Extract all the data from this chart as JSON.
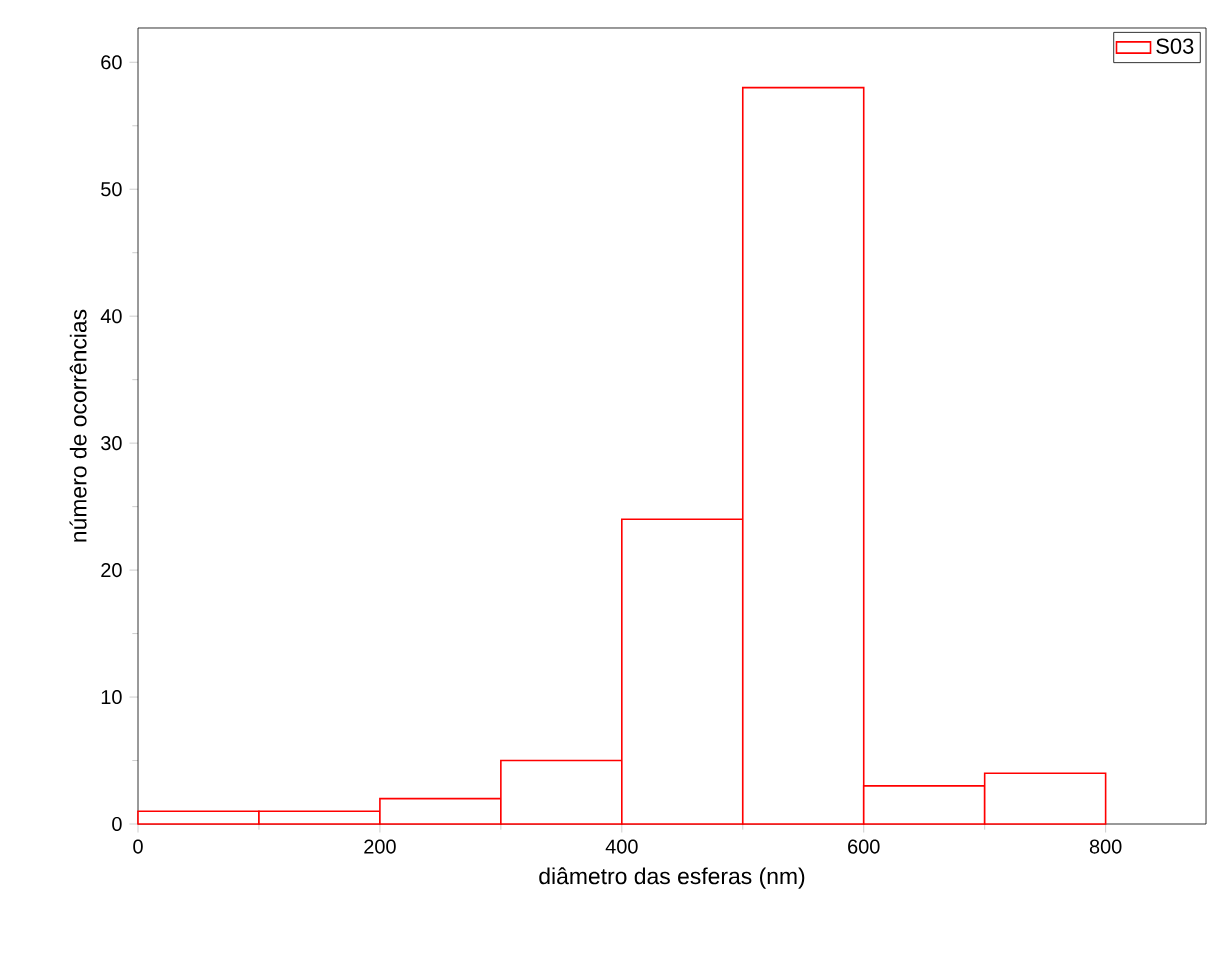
{
  "chart_data": {
    "type": "histogram",
    "xlabel": "diâmetro das esferas (nm)",
    "ylabel": "número de ocorrências",
    "bins": [
      0,
      100,
      200,
      300,
      400,
      500,
      600,
      700,
      800
    ],
    "series": [
      {
        "name": "S03",
        "color": "#ff0000",
        "values": [
          1,
          1,
          2,
          5,
          24,
          58,
          3,
          4
        ]
      }
    ],
    "xlim": [
      0,
      883
    ],
    "ylim": [
      0,
      62.7
    ],
    "xticks": [
      0,
      200,
      400,
      600,
      800
    ],
    "yticks": [
      0,
      10,
      20,
      30,
      40,
      50,
      60
    ],
    "grid": false,
    "legend": "top right"
  }
}
